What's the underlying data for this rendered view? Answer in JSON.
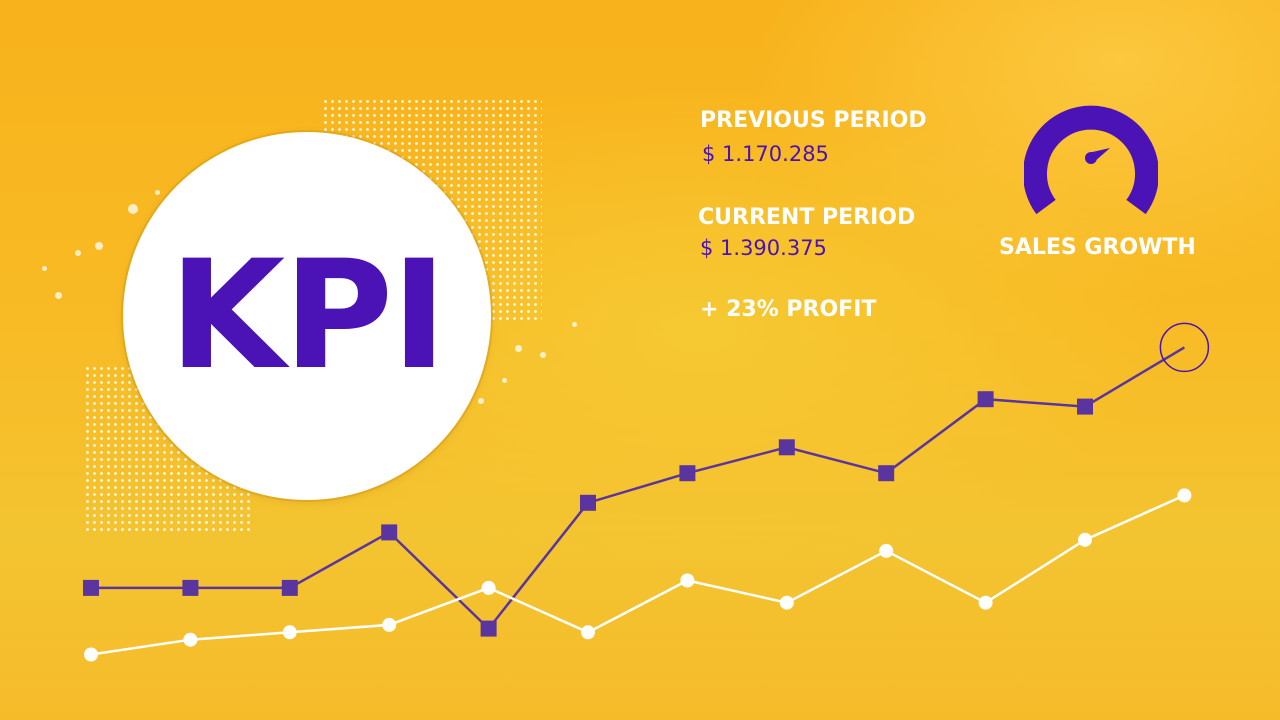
{
  "kpi": {
    "title": "KPI"
  },
  "stats": {
    "previous_label": "PREVIOUS PERIOD",
    "previous_value": "$ 1.170.285",
    "current_label": "CURRENT PERIOD",
    "current_value": "$ 1.390.375",
    "profit_text": "+ 23% PROFIT"
  },
  "gauge": {
    "label": "SALES GROWTH",
    "icon": "speedometer-icon"
  },
  "colors": {
    "accent": "#4b12b5",
    "line": "#5a35a0",
    "white": "#ffffff",
    "background": "#f8b21b",
    "background_light": "#f5c534"
  },
  "chart_data": {
    "type": "line",
    "x": [
      1,
      2,
      3,
      4,
      5,
      6,
      7,
      8,
      9,
      10,
      11,
      12
    ],
    "xlabel": "",
    "ylabel": "",
    "ylim": [
      0,
      100
    ],
    "grid": false,
    "series": [
      {
        "values": [
          33,
          33,
          33,
          48,
          22,
          56,
          64,
          71,
          64,
          84,
          82,
          98
        ]
      },
      {
        "values": [
          15,
          19,
          21,
          23,
          33,
          21,
          35,
          29,
          43,
          29,
          46,
          58
        ]
      }
    ]
  }
}
